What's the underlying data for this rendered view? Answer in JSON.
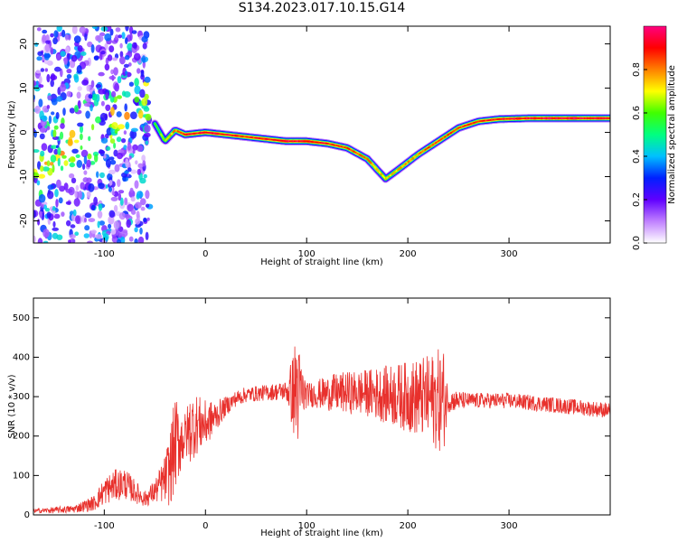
{
  "title": "S134.2023.017.10.15.G14",
  "chart_data": [
    {
      "type": "heatmap",
      "title": "S134.2023.017.10.15.G14",
      "xlabel": "Height of straight line (km)",
      "ylabel": "Frequency (Hz)",
      "xlim": [
        -170,
        400
      ],
      "ylim": [
        -25,
        24
      ],
      "xticks": [
        -100,
        0,
        100,
        200,
        300
      ],
      "yticks": [
        -20,
        -10,
        0,
        10,
        20
      ],
      "colorbar": {
        "label": "Normalized spectral amplitude",
        "range": [
          0,
          1
        ],
        "ticks": [
          "0.0",
          "0.2",
          "0.4",
          "0.6",
          "0.8"
        ],
        "tick_values": [
          0,
          0.2,
          0.4,
          0.6,
          0.8
        ],
        "colors": [
          "#ffffff",
          "#c080ff",
          "#6000ff",
          "#0020ff",
          "#00c0ff",
          "#00ff80",
          "#40ff00",
          "#ffff00",
          "#ff8000",
          "#ff0000",
          "#ff0080"
        ]
      },
      "ridge": {
        "x": [
          -50,
          -40,
          -30,
          -20,
          0,
          20,
          40,
          60,
          80,
          100,
          120,
          140,
          160,
          170,
          178,
          190,
          210,
          230,
          250,
          270,
          290,
          320,
          360,
          400
        ],
        "y": [
          2,
          -2,
          0.5,
          -0.5,
          0,
          -0.5,
          -1,
          -1.5,
          -2,
          -2,
          -2.5,
          -3.5,
          -6,
          -8.5,
          -10.5,
          -8.5,
          -5,
          -2,
          1,
          2.5,
          3,
          3.2,
          3.2,
          3.2
        ],
        "amplitude": [
          0.5,
          0.6,
          0.75,
          0.85,
          0.88,
          0.85,
          0.82,
          0.85,
          0.88,
          0.88,
          0.85,
          0.8,
          0.75,
          0.7,
          0.65,
          0.7,
          0.75,
          0.8,
          0.8,
          0.82,
          0.85,
          0.88,
          0.9,
          0.85
        ]
      },
      "noise_region": {
        "x": [
          -170,
          -55
        ],
        "y": [
          -25,
          24
        ],
        "amplitude": [
          0.1,
          0.6
        ]
      }
    },
    {
      "type": "line",
      "xlabel": "Height of straight line (km)",
      "ylabel": "SNR (10 * v/v)",
      "xlim": [
        -170,
        400
      ],
      "ylim": [
        0,
        550
      ],
      "xticks": [
        -100,
        0,
        100,
        200,
        300
      ],
      "yticks": [
        0,
        100,
        200,
        300,
        400,
        500
      ],
      "color": "#e8302c",
      "series": [
        {
          "x": [
            -170,
            -150,
            -130,
            -110,
            -100,
            -90,
            -80,
            -70,
            -60,
            -50,
            -40,
            -35,
            -30,
            -20,
            -15,
            -10,
            0,
            10,
            20,
            30,
            40,
            60,
            80,
            88,
            90,
            92,
            100,
            130,
            160,
            200,
            220,
            235,
            240,
            260,
            280,
            300,
            320,
            340,
            360,
            380,
            400
          ],
          "y": [
            10,
            12,
            15,
            30,
            60,
            75,
            80,
            60,
            40,
            60,
            90,
            120,
            180,
            200,
            220,
            230,
            230,
            250,
            275,
            295,
            305,
            310,
            315,
            310,
            320,
            310,
            305,
            310,
            310,
            300,
            295,
            290,
            290,
            290,
            290,
            290,
            285,
            280,
            275,
            270,
            265
          ],
          "noise": [
            5,
            8,
            10,
            20,
            35,
            40,
            40,
            30,
            20,
            30,
            60,
            100,
            120,
            60,
            90,
            80,
            60,
            40,
            25,
            20,
            20,
            20,
            25,
            120,
            200,
            120,
            30,
            50,
            60,
            90,
            110,
            140,
            30,
            20,
            20,
            20,
            20,
            20,
            20,
            20,
            20
          ]
        }
      ]
    }
  ]
}
